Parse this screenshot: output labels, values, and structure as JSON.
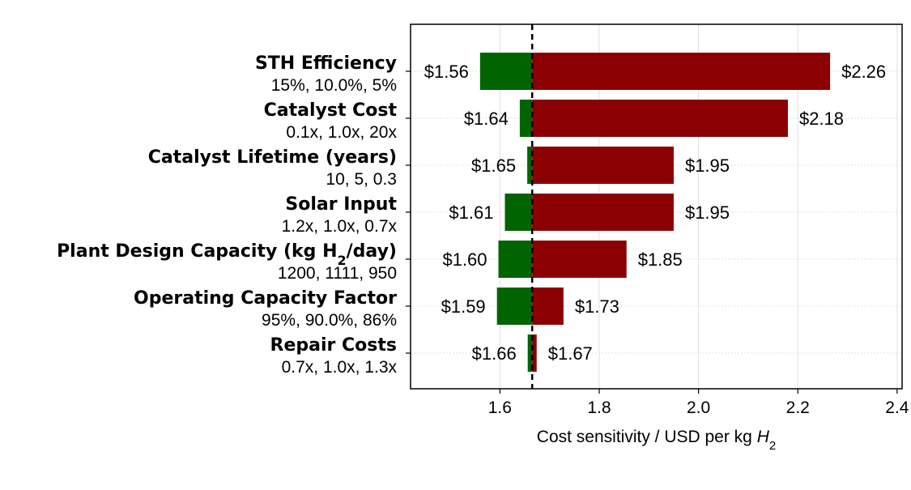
{
  "chart_data": {
    "type": "bar",
    "orientation": "horizontal",
    "subtype": "tornado",
    "xlabel": "Cost sensitivity / USD per kg H2",
    "xlabel_parts": {
      "text": "Cost sensitivity / USD per kg ",
      "italic": "H",
      "sub": "2"
    },
    "xlim": [
      1.42,
      2.41
    ],
    "xticks": [
      1.6,
      1.8,
      2.0,
      2.2,
      2.4
    ],
    "xtick_labels": [
      "1.6",
      "1.8",
      "2.0",
      "2.2",
      "2.4"
    ],
    "baseline": 1.665,
    "grid": true,
    "colors": {
      "low": "#006400",
      "high": "#8b0000",
      "baseline": "#000000",
      "grid": "#d9d9d9"
    },
    "categories": [
      {
        "name": "STH Efficiency",
        "levels": "15%, 10.0%, 5%",
        "low": 1.56,
        "high": 2.265,
        "low_label": "$1.56",
        "high_label": "$2.26"
      },
      {
        "name": "Catalyst Cost",
        "levels": "0.1x, 1.0x, 20x",
        "low": 1.64,
        "high": 2.18,
        "low_label": "$1.64",
        "high_label": "$2.18"
      },
      {
        "name": "Catalyst Lifetime (years)",
        "levels": "10, 5, 0.3",
        "low": 1.655,
        "high": 1.95,
        "low_label": "$1.65",
        "high_label": "$1.95"
      },
      {
        "name": "Solar Input",
        "levels": "1.2x, 1.0x, 0.7x",
        "low": 1.61,
        "high": 1.95,
        "low_label": "$1.61",
        "high_label": "$1.95"
      },
      {
        "name": "Plant Design Capacity (kg H2/day)",
        "name_parts": {
          "pre": "Plant Design Capacity (kg H",
          "sub": "2",
          "post": "/day)"
        },
        "levels": "1200, 1111, 950",
        "low": 1.597,
        "high": 1.855,
        "low_label": "$1.60",
        "high_label": "$1.85"
      },
      {
        "name": "Operating Capacity Factor",
        "levels": "95%, 90.0%, 86%",
        "low": 1.594,
        "high": 1.728,
        "low_label": "$1.59",
        "high_label": "$1.73"
      },
      {
        "name": "Repair Costs",
        "levels": "0.7x, 1.0x, 1.3x",
        "low": 1.656,
        "high": 1.674,
        "low_label": "$1.66",
        "high_label": "$1.67"
      }
    ]
  }
}
